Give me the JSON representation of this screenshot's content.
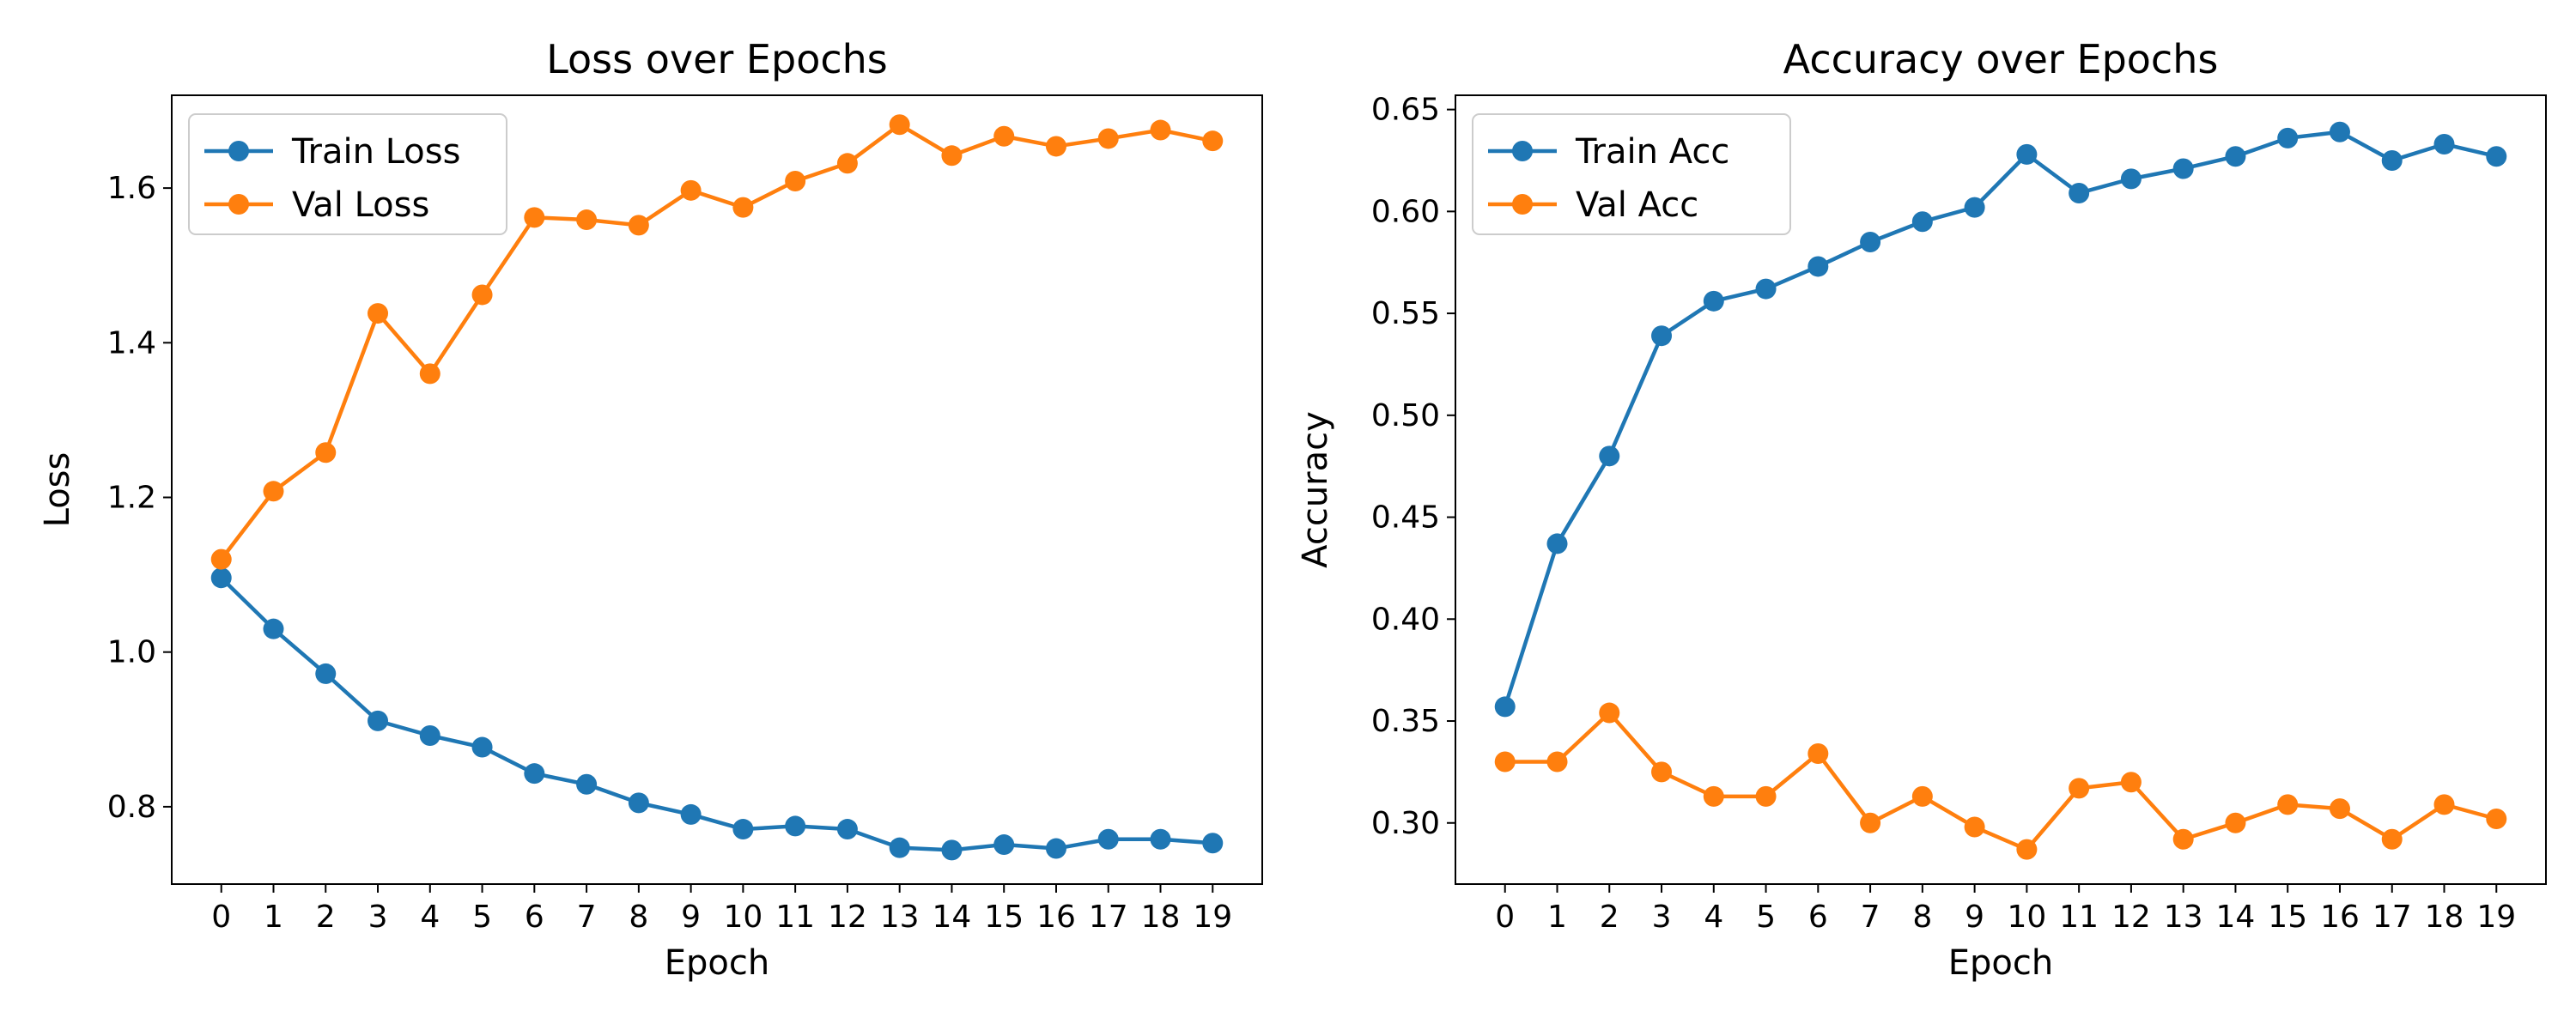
{
  "chart_data": [
    {
      "type": "line",
      "title": "Loss over Epochs",
      "xlabel": "Epoch",
      "ylabel": "Loss",
      "x": [
        0,
        1,
        2,
        3,
        4,
        5,
        6,
        7,
        8,
        9,
        10,
        11,
        12,
        13,
        14,
        15,
        16,
        17,
        18,
        19
      ],
      "ylim": [
        0.7,
        1.72
      ],
      "yticks": [
        "0.8",
        "1.0",
        "1.2",
        "1.4",
        "1.6"
      ],
      "ytick_values": [
        0.8,
        1.0,
        1.2,
        1.4,
        1.6
      ],
      "grid": false,
      "legend_position": "top-left",
      "series": [
        {
          "name": "Train Loss",
          "color": "#1f77b4",
          "values": [
            1.096,
            1.03,
            0.972,
            0.911,
            0.892,
            0.877,
            0.843,
            0.829,
            0.805,
            0.79,
            0.771,
            0.775,
            0.771,
            0.747,
            0.744,
            0.751,
            0.746,
            0.758,
            0.758,
            0.753
          ]
        },
        {
          "name": "Val Loss",
          "color": "#ff7f0e",
          "values": [
            1.12,
            1.208,
            1.258,
            1.438,
            1.36,
            1.462,
            1.562,
            1.559,
            1.552,
            1.597,
            1.575,
            1.609,
            1.632,
            1.682,
            1.642,
            1.667,
            1.654,
            1.664,
            1.675,
            1.661
          ]
        }
      ]
    },
    {
      "type": "line",
      "title": "Accuracy over Epochs",
      "xlabel": "Epoch",
      "ylabel": "Accuracy",
      "x": [
        0,
        1,
        2,
        3,
        4,
        5,
        6,
        7,
        8,
        9,
        10,
        11,
        12,
        13,
        14,
        15,
        16,
        17,
        18,
        19
      ],
      "ylim": [
        0.27,
        0.657
      ],
      "yticks": [
        "0.30",
        "0.35",
        "0.40",
        "0.45",
        "0.50",
        "0.55",
        "0.60",
        "0.65"
      ],
      "ytick_values": [
        0.3,
        0.35,
        0.4,
        0.45,
        0.5,
        0.55,
        0.6,
        0.65
      ],
      "grid": false,
      "legend_position": "top-left",
      "series": [
        {
          "name": "Train Acc",
          "color": "#1f77b4",
          "values": [
            0.357,
            0.437,
            0.48,
            0.539,
            0.556,
            0.562,
            0.573,
            0.585,
            0.595,
            0.602,
            0.628,
            0.609,
            0.616,
            0.621,
            0.627,
            0.636,
            0.639,
            0.625,
            0.633,
            0.627
          ]
        },
        {
          "name": "Val Acc",
          "color": "#ff7f0e",
          "values": [
            0.33,
            0.33,
            0.354,
            0.325,
            0.313,
            0.313,
            0.334,
            0.3,
            0.313,
            0.298,
            0.287,
            0.317,
            0.32,
            0.292,
            0.3,
            0.309,
            0.307,
            0.292,
            0.309,
            0.302
          ]
        }
      ]
    }
  ]
}
